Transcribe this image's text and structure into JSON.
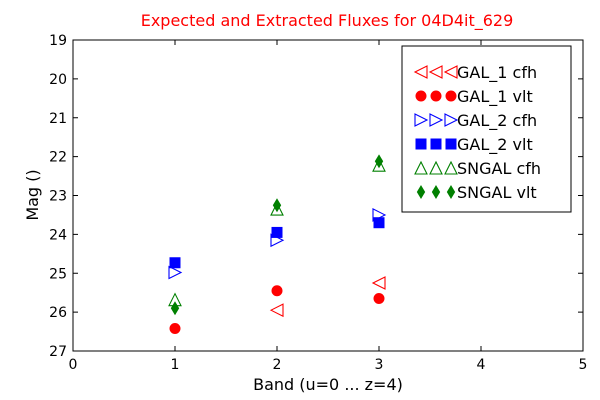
{
  "chart_data": {
    "type": "scatter",
    "title": "Expected and Extracted Fluxes for 04D4it_629",
    "xlabel": "Band (u=0 ... z=4)",
    "ylabel": "Mag ()",
    "xlim": [
      0,
      5
    ],
    "ylim": [
      27,
      19
    ],
    "y_inverted": true,
    "x_ticks": [
      "0",
      "1",
      "2",
      "3",
      "4",
      "5"
    ],
    "y_ticks": [
      "19",
      "20",
      "21",
      "22",
      "23",
      "24",
      "25",
      "26",
      "27"
    ],
    "grid": false,
    "legend_position": "top-right",
    "series": [
      {
        "name": "GAL_1 cfh",
        "marker": "triangle-left-open",
        "color": "#ff0000",
        "points": [
          [
            2,
            25.95
          ],
          [
            3,
            25.25
          ]
        ]
      },
      {
        "name": "GAL_1 vlt",
        "marker": "circle-filled",
        "color": "#ff0000",
        "points": [
          [
            1,
            26.42
          ],
          [
            2,
            25.45
          ],
          [
            3,
            25.65
          ]
        ]
      },
      {
        "name": "GAL_2 cfh",
        "marker": "triangle-right-open",
        "color": "#0000ff",
        "points": [
          [
            1,
            24.98
          ],
          [
            2,
            24.15
          ],
          [
            3,
            23.5
          ]
        ]
      },
      {
        "name": "GAL_2 vlt",
        "marker": "square-filled",
        "color": "#0000ff",
        "points": [
          [
            1,
            24.73
          ],
          [
            2,
            23.95
          ],
          [
            3,
            23.7
          ]
        ]
      },
      {
        "name": "SNGAL cfh",
        "marker": "triangle-up-open",
        "color": "#008000",
        "points": [
          [
            1,
            25.68
          ],
          [
            2,
            23.35
          ],
          [
            3,
            22.22
          ]
        ]
      },
      {
        "name": "SNGAL vlt",
        "marker": "diamond-filled",
        "color": "#008000",
        "points": [
          [
            1,
            25.9
          ],
          [
            2,
            23.25
          ],
          [
            3,
            22.12
          ]
        ]
      }
    ]
  }
}
